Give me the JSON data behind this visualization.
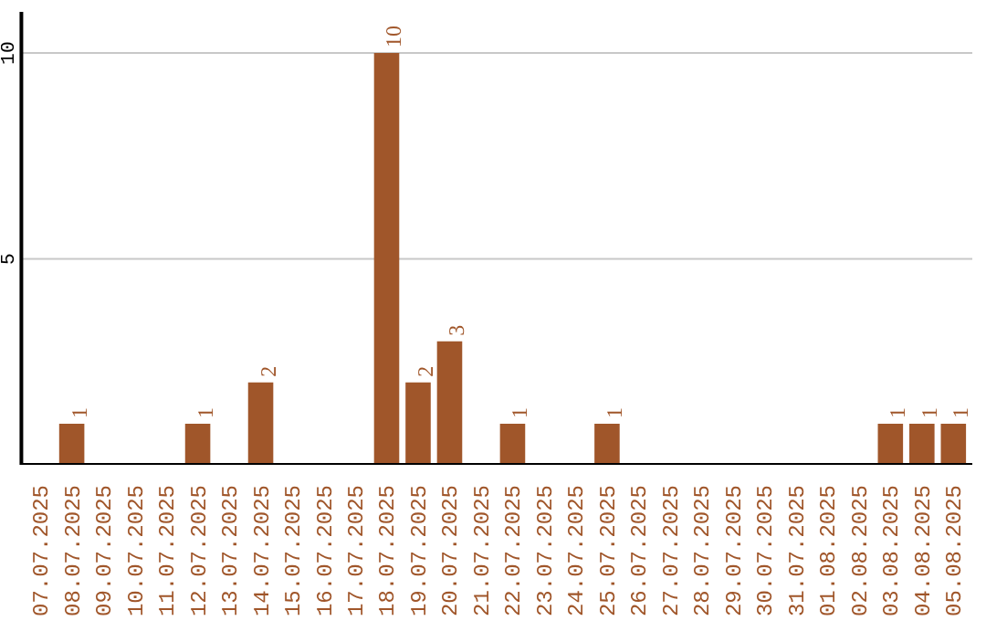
{
  "chart_data": {
    "type": "bar",
    "categories": [
      "07.07.2025",
      "08.07.2025",
      "09.07.2025",
      "10.07.2025",
      "11.07.2025",
      "12.07.2025",
      "13.07.2025",
      "14.07.2025",
      "15.07.2025",
      "16.07.2025",
      "17.07.2025",
      "18.07.2025",
      "19.07.2025",
      "20.07.2025",
      "21.07.2025",
      "22.07.2025",
      "23.07.2025",
      "24.07.2025",
      "25.07.2025",
      "26.07.2025",
      "27.07.2025",
      "28.07.2025",
      "29.07.2025",
      "30.07.2025",
      "31.07.2025",
      "01.08.2025",
      "02.08.2025",
      "03.08.2025",
      "04.08.2025",
      "05.08.2025"
    ],
    "values": [
      0,
      1,
      0,
      0,
      0,
      1,
      0,
      2,
      0,
      0,
      0,
      10,
      2,
      3,
      0,
      1,
      0,
      0,
      1,
      0,
      0,
      0,
      0,
      0,
      0,
      0,
      0,
      1,
      1,
      1
    ],
    "value_labels": [
      null,
      "1",
      null,
      null,
      null,
      "1",
      null,
      "2",
      null,
      null,
      null,
      "10",
      "2",
      "3",
      null,
      "1",
      null,
      null,
      "1",
      null,
      null,
      null,
      null,
      null,
      null,
      null,
      null,
      "1",
      "1",
      "1"
    ],
    "color": "#a0562a",
    "ylim": [
      0,
      11
    ],
    "yticks": [
      5,
      10
    ],
    "grid": "y"
  }
}
